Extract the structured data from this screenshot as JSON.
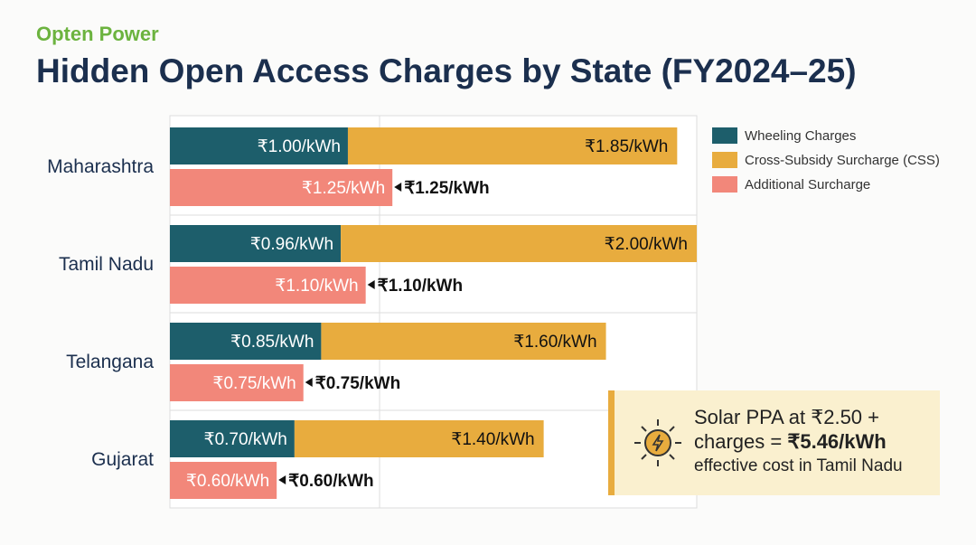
{
  "logo": "Opten Power",
  "title": "Hidden Open Access Charges by State (FY2024–25)",
  "legend": [
    {
      "name": "Wheeling Charges",
      "color": "#1d5e6b"
    },
    {
      "name": "Cross-Subsidy Surcharge (CSS)",
      "color": "#e8ac3e"
    },
    {
      "name": "Additional Surcharge",
      "color": "#f2877a"
    }
  ],
  "callout": {
    "line1": "Solar PPA at ₹2.50 +",
    "line2a": "charges = ",
    "line2b": "₹5.46/kWh",
    "line3": "effective cost in Tamil Nadu",
    "icon": "sun-bolt-icon"
  },
  "chart_data": {
    "type": "bar",
    "orientation": "horizontal",
    "stacked_partial": true,
    "categories": [
      "Maharashtra",
      "Tamil Nadu",
      "Telangana",
      "Gujarat"
    ],
    "series": [
      {
        "name": "Wheeling Charges",
        "values": [
          1.0,
          0.96,
          0.85,
          0.7
        ],
        "labels": [
          "₹1.00/kWh",
          "₹0.96/kWh",
          "₹0.85/kWh",
          "₹0.70/kWh"
        ]
      },
      {
        "name": "Cross-Subsidy Surcharge (CSS)",
        "values": [
          1.85,
          2.0,
          1.6,
          1.4
        ],
        "labels": [
          "₹1.85/kWh",
          "₹2.00/kWh",
          "₹1.60/kWh",
          "₹1.40/kWh"
        ]
      },
      {
        "name": "Additional Surcharge",
        "values": [
          1.25,
          1.1,
          0.75,
          0.6
        ],
        "labels": [
          "₹1.25/kWh",
          "₹1.10/kWh",
          "₹0.75/kWh",
          "₹0.60/kWh"
        ]
      }
    ],
    "unit": "₹/kWh",
    "grid": true,
    "legend": "top-right"
  }
}
